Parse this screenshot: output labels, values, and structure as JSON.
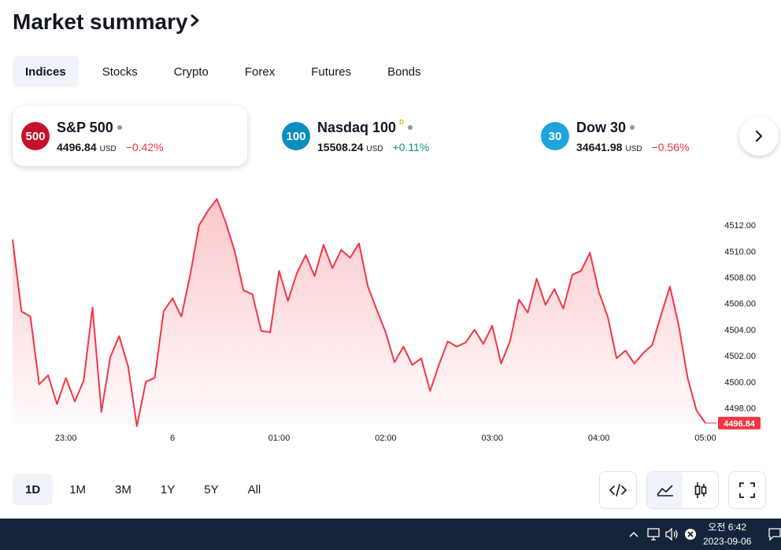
{
  "header": {
    "title": "Market summary"
  },
  "tabs": [
    {
      "label": "Indices",
      "active": true
    },
    {
      "label": "Stocks"
    },
    {
      "label": "Crypto"
    },
    {
      "label": "Forex"
    },
    {
      "label": "Futures"
    },
    {
      "label": "Bonds"
    }
  ],
  "cards": [
    {
      "badge": "500",
      "badge_color": "#c8102e",
      "name": "S&P 500",
      "price": "4496.84",
      "currency": "USD",
      "change": "−0.42%",
      "change_dir": "neg"
    },
    {
      "badge": "100",
      "badge_color": "#0b8dbf",
      "name": "Nasdaq 100",
      "marker": "D",
      "price": "15508.24",
      "currency": "USD",
      "change": "+0.11%",
      "change_dir": "pos"
    },
    {
      "badge": "30",
      "badge_color": "#1ea3db",
      "name": "Dow 30",
      "price": "34641.98",
      "currency": "USD",
      "change": "−0.56%",
      "change_dir": "neg"
    }
  ],
  "ranges": [
    {
      "label": "1D",
      "active": true
    },
    {
      "label": "1M"
    },
    {
      "label": "3M"
    },
    {
      "label": "1Y"
    },
    {
      "label": "5Y"
    },
    {
      "label": "All"
    }
  ],
  "toolbar": {
    "embed_icon": "code-icon",
    "area_icon": "area-chart-icon",
    "candle_icon": "candlestick-icon",
    "fullscreen_icon": "fullscreen-icon"
  },
  "taskbar": {
    "time": "오전 6:42",
    "date": "2023-09-06"
  },
  "colors": {
    "line": "#f23645",
    "accent_bg": "#f0f3fa",
    "taskbar": "#14243a"
  },
  "chart_data": {
    "type": "area",
    "x_ticks": [
      "23:00",
      "6",
      "01:00",
      "02:00",
      "03:00",
      "04:00",
      "05:00"
    ],
    "y_ticks": [
      "4512.00",
      "4510.00",
      "4508.00",
      "4506.00",
      "4504.00",
      "4502.00",
      "4500.00",
      "4498.00"
    ],
    "ylim": [
      4496.0,
      4514.0
    ],
    "last_price": "4496.84",
    "series": [
      {
        "x": "22:30",
        "y": 4510.9
      },
      {
        "x": "22:35",
        "y": 4505.4
      },
      {
        "x": "22:40",
        "y": 4505.0
      },
      {
        "x": "22:45",
        "y": 4499.8
      },
      {
        "x": "22:50",
        "y": 4500.5
      },
      {
        "x": "22:55",
        "y": 4498.3
      },
      {
        "x": "23:00",
        "y": 4500.3
      },
      {
        "x": "23:05",
        "y": 4498.5
      },
      {
        "x": "23:10",
        "y": 4500.1
      },
      {
        "x": "23:15",
        "y": 4505.7
      },
      {
        "x": "23:20",
        "y": 4497.7
      },
      {
        "x": "23:25",
        "y": 4501.9
      },
      {
        "x": "23:30",
        "y": 4503.5
      },
      {
        "x": "23:35",
        "y": 4501.2
      },
      {
        "x": "23:40",
        "y": 4496.6
      },
      {
        "x": "23:45",
        "y": 4500.0
      },
      {
        "x": "23:50",
        "y": 4500.3
      },
      {
        "x": "23:55",
        "y": 4505.4
      },
      {
        "x": "00:00",
        "y": 4506.4
      },
      {
        "x": "00:05",
        "y": 4505.0
      },
      {
        "x": "00:10",
        "y": 4508.2
      },
      {
        "x": "00:15",
        "y": 4512.0
      },
      {
        "x": "00:20",
        "y": 4513.1
      },
      {
        "x": "00:25",
        "y": 4514.0
      },
      {
        "x": "00:30",
        "y": 4512.2
      },
      {
        "x": "00:35",
        "y": 4510.0
      },
      {
        "x": "00:40",
        "y": 4507.0
      },
      {
        "x": "00:45",
        "y": 4506.7
      },
      {
        "x": "00:50",
        "y": 4503.9
      },
      {
        "x": "00:55",
        "y": 4503.8
      },
      {
        "x": "01:00",
        "y": 4508.5
      },
      {
        "x": "01:05",
        "y": 4506.2
      },
      {
        "x": "01:10",
        "y": 4508.3
      },
      {
        "x": "01:15",
        "y": 4509.7
      },
      {
        "x": "01:20",
        "y": 4508.1
      },
      {
        "x": "01:25",
        "y": 4510.5
      },
      {
        "x": "01:30",
        "y": 4508.7
      },
      {
        "x": "01:35",
        "y": 4510.1
      },
      {
        "x": "01:40",
        "y": 4509.5
      },
      {
        "x": "01:45",
        "y": 4510.6
      },
      {
        "x": "01:50",
        "y": 4507.3
      },
      {
        "x": "01:55",
        "y": 4505.5
      },
      {
        "x": "02:00",
        "y": 4503.8
      },
      {
        "x": "02:05",
        "y": 4501.5
      },
      {
        "x": "02:10",
        "y": 4502.7
      },
      {
        "x": "02:15",
        "y": 4501.3
      },
      {
        "x": "02:20",
        "y": 4501.8
      },
      {
        "x": "02:25",
        "y": 4499.3
      },
      {
        "x": "02:30",
        "y": 4501.3
      },
      {
        "x": "02:35",
        "y": 4503.1
      },
      {
        "x": "02:40",
        "y": 4502.7
      },
      {
        "x": "02:45",
        "y": 4503.0
      },
      {
        "x": "02:50",
        "y": 4504.0
      },
      {
        "x": "02:55",
        "y": 4502.9
      },
      {
        "x": "03:00",
        "y": 4504.3
      },
      {
        "x": "03:05",
        "y": 4501.4
      },
      {
        "x": "03:10",
        "y": 4503.1
      },
      {
        "x": "03:15",
        "y": 4506.3
      },
      {
        "x": "03:20",
        "y": 4505.3
      },
      {
        "x": "03:25",
        "y": 4507.9
      },
      {
        "x": "03:30",
        "y": 4505.9
      },
      {
        "x": "03:35",
        "y": 4507.1
      },
      {
        "x": "03:40",
        "y": 4505.6
      },
      {
        "x": "03:45",
        "y": 4508.2
      },
      {
        "x": "03:50",
        "y": 4508.5
      },
      {
        "x": "03:55",
        "y": 4509.9
      },
      {
        "x": "04:00",
        "y": 4506.9
      },
      {
        "x": "04:05",
        "y": 4505.0
      },
      {
        "x": "04:10",
        "y": 4501.8
      },
      {
        "x": "04:15",
        "y": 4502.4
      },
      {
        "x": "04:20",
        "y": 4501.4
      },
      {
        "x": "04:25",
        "y": 4502.2
      },
      {
        "x": "04:30",
        "y": 4502.8
      },
      {
        "x": "04:35",
        "y": 4505.1
      },
      {
        "x": "04:40",
        "y": 4507.3
      },
      {
        "x": "04:45",
        "y": 4504.3
      },
      {
        "x": "04:50",
        "y": 4500.3
      },
      {
        "x": "04:55",
        "y": 4497.8
      },
      {
        "x": "05:00",
        "y": 4496.84
      }
    ]
  }
}
